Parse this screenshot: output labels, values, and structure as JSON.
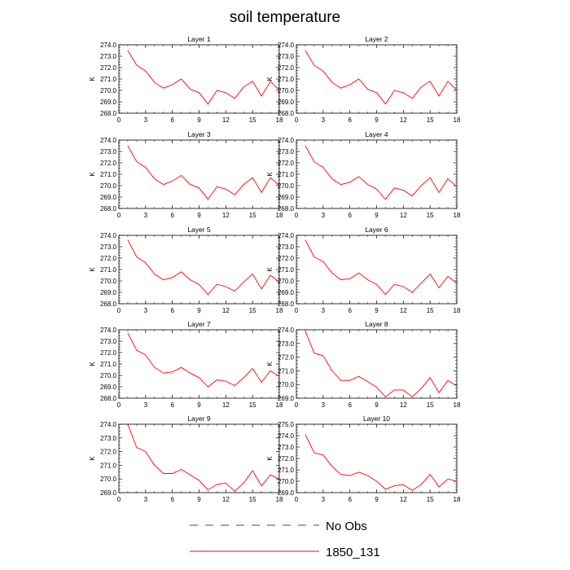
{
  "chart_data": {
    "type": "line",
    "title": "soil temperature",
    "xlabel": "",
    "ylabel": "K",
    "x": [
      1,
      2,
      3,
      4,
      5,
      6,
      7,
      8,
      9,
      10,
      11,
      12,
      13,
      14,
      15,
      16,
      17,
      18
    ],
    "xlim": [
      0,
      18
    ],
    "xticks": [
      0,
      3,
      6,
      9,
      12,
      15,
      18
    ],
    "legend": [
      {
        "name": "No Obs",
        "color": "#3b3bd6",
        "style": "dashed"
      },
      {
        "name": "1850_131",
        "color": "#ff0000",
        "style": "solid"
      }
    ],
    "panels": [
      {
        "title": "Layer 1",
        "ylim": [
          268.0,
          274.0
        ],
        "yticks": [
          "268.0",
          "269.0",
          "270.0",
          "271.0",
          "272.0",
          "273.0",
          "274.0"
        ],
        "series": [
          {
            "name": "1850_131",
            "values": [
              273.5,
              272.2,
              271.7,
              270.7,
              270.2,
              270.5,
              271.0,
              270.1,
              269.8,
              268.8,
              270.0,
              269.8,
              269.3,
              270.3,
              270.8,
              269.5,
              270.8,
              270.0
            ]
          }
        ]
      },
      {
        "title": "Layer 2",
        "ylim": [
          268.0,
          274.0
        ],
        "yticks": [
          "268.0",
          "269.0",
          "270.0",
          "271.0",
          "272.0",
          "273.0",
          "274.0"
        ],
        "series": [
          {
            "name": "1850_131",
            "values": [
              273.5,
              272.2,
              271.7,
              270.7,
              270.2,
              270.5,
              271.0,
              270.1,
              269.8,
              268.8,
              270.0,
              269.8,
              269.3,
              270.3,
              270.8,
              269.5,
              270.8,
              270.0
            ]
          }
        ]
      },
      {
        "title": "Layer 3",
        "ylim": [
          268.0,
          274.0
        ],
        "yticks": [
          "268.0",
          "269.0",
          "270.0",
          "271.0",
          "272.0",
          "273.0",
          "274.0"
        ],
        "series": [
          {
            "name": "1850_131",
            "values": [
              273.5,
              272.1,
              271.6,
              270.6,
              270.1,
              270.4,
              270.9,
              270.1,
              269.8,
              268.8,
              269.9,
              269.7,
              269.2,
              270.1,
              270.7,
              269.4,
              270.7,
              270.0
            ]
          }
        ]
      },
      {
        "title": "Layer 4",
        "ylim": [
          268.0,
          274.0
        ],
        "yticks": [
          "268.0",
          "269.0",
          "270.0",
          "271.0",
          "272.0",
          "273.0",
          "274.0"
        ],
        "series": [
          {
            "name": "1850_131",
            "values": [
              273.5,
              272.1,
              271.6,
              270.6,
              270.1,
              270.3,
              270.8,
              270.1,
              269.7,
              268.8,
              269.8,
              269.6,
              269.1,
              270.0,
              270.7,
              269.4,
              270.6,
              269.9
            ]
          }
        ]
      },
      {
        "title": "Layer 5",
        "ylim": [
          268.0,
          274.0
        ],
        "yticks": [
          "268.0",
          "269.0",
          "270.0",
          "271.0",
          "272.0",
          "273.0",
          "274.0"
        ],
        "series": [
          {
            "name": "1850_131",
            "values": [
              273.6,
              272.1,
              271.6,
              270.6,
              270.1,
              270.3,
              270.8,
              270.1,
              269.7,
              268.8,
              269.7,
              269.5,
              269.1,
              269.9,
              270.6,
              269.3,
              270.5,
              269.9
            ]
          }
        ]
      },
      {
        "title": "Layer 6",
        "ylim": [
          268.0,
          274.0
        ],
        "yticks": [
          "268.0",
          "269.0",
          "270.0",
          "271.0",
          "272.0",
          "273.0",
          "274.0"
        ],
        "series": [
          {
            "name": "1850_131",
            "values": [
              273.6,
              272.1,
              271.7,
              270.7,
              270.1,
              270.2,
              270.7,
              270.1,
              269.7,
              268.8,
              269.7,
              269.5,
              269.0,
              269.8,
              270.6,
              269.4,
              270.4,
              269.8
            ]
          }
        ]
      },
      {
        "title": "Layer 7",
        "ylim": [
          268.0,
          274.0
        ],
        "yticks": [
          "268.0",
          "269.0",
          "270.0",
          "271.0",
          "272.0",
          "273.0",
          "274.0"
        ],
        "series": [
          {
            "name": "1850_131",
            "values": [
              273.7,
              272.2,
              271.8,
              270.7,
              270.2,
              270.3,
              270.7,
              270.2,
              269.8,
              269.0,
              269.6,
              269.5,
              269.1,
              269.8,
              270.6,
              269.4,
              270.4,
              269.9
            ]
          }
        ]
      },
      {
        "title": "Layer 8",
        "ylim": [
          269.0,
          274.0
        ],
        "yticks": [
          "269.0",
          "270.0",
          "271.0",
          "272.0",
          "273.0",
          "274.0"
        ],
        "series": [
          {
            "name": "1850_131",
            "values": [
              273.9,
              272.3,
              272.1,
              271.0,
              270.3,
              270.3,
              270.6,
              270.2,
              269.8,
              269.1,
              269.6,
              269.6,
              269.1,
              269.7,
              270.5,
              269.4,
              270.3,
              269.9
            ]
          }
        ]
      },
      {
        "title": "Layer 9",
        "ylim": [
          269.0,
          274.0
        ],
        "yticks": [
          "269.0",
          "270.0",
          "271.0",
          "272.0",
          "273.0",
          "274.0"
        ],
        "series": [
          {
            "name": "1850_131",
            "values": [
              274.0,
              272.3,
              272.0,
              271.0,
              270.4,
              270.4,
              270.7,
              270.3,
              269.9,
              269.2,
              269.6,
              269.7,
              269.1,
              269.7,
              270.6,
              269.5,
              270.3,
              270.0
            ]
          }
        ]
      },
      {
        "title": "Layer 10",
        "ylim": [
          269.0,
          275.0
        ],
        "yticks": [
          "269.0",
          "270.0",
          "271.0",
          "272.0",
          "273.0",
          "274.0",
          "275.0"
        ],
        "series": [
          {
            "name": "1850_131",
            "values": [
              274.1,
              272.5,
              272.3,
              271.3,
              270.6,
              270.5,
              270.8,
              270.5,
              270.0,
              269.3,
              269.6,
              269.7,
              269.2,
              269.7,
              270.6,
              269.5,
              270.2,
              270.0
            ]
          }
        ]
      }
    ]
  }
}
